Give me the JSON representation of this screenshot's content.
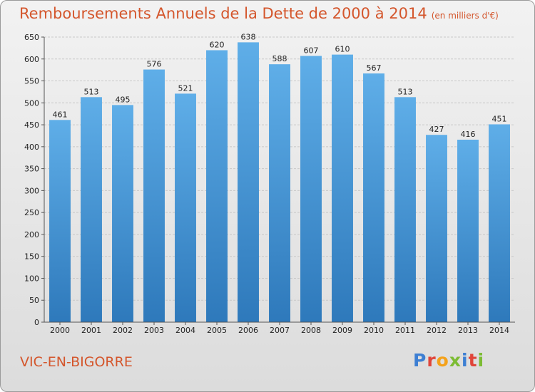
{
  "title": "Remboursements Annuels de la Dette de 2000 à 2014",
  "unit_note": "(en milliers d'€)",
  "city": "VIC-EN-BIGORRE",
  "logo": {
    "p": "P",
    "r": "r",
    "o": "o",
    "x": "x",
    "i": "i",
    "t": "t",
    "i2": "i"
  },
  "colors": {
    "bar_top": "#5faee8",
    "bar_bottom": "#2e79bb",
    "title": "#d4562c"
  },
  "chart_data": {
    "type": "bar",
    "title": "Remboursements Annuels de la Dette de 2000 à 2014",
    "subtitle": "(en milliers d'€)",
    "xlabel": "",
    "ylabel": "",
    "categories": [
      "2000",
      "2001",
      "2002",
      "2003",
      "2004",
      "2005",
      "2006",
      "2007",
      "2008",
      "2009",
      "2010",
      "2011",
      "2012",
      "2013",
      "2014"
    ],
    "values": [
      461,
      513,
      495,
      576,
      521,
      620,
      638,
      588,
      607,
      610,
      567,
      513,
      427,
      416,
      451
    ],
    "ylim": [
      0,
      650
    ],
    "yticks": [
      0,
      50,
      100,
      150,
      200,
      250,
      300,
      350,
      400,
      450,
      500,
      550,
      600,
      650
    ],
    "grid": true
  }
}
